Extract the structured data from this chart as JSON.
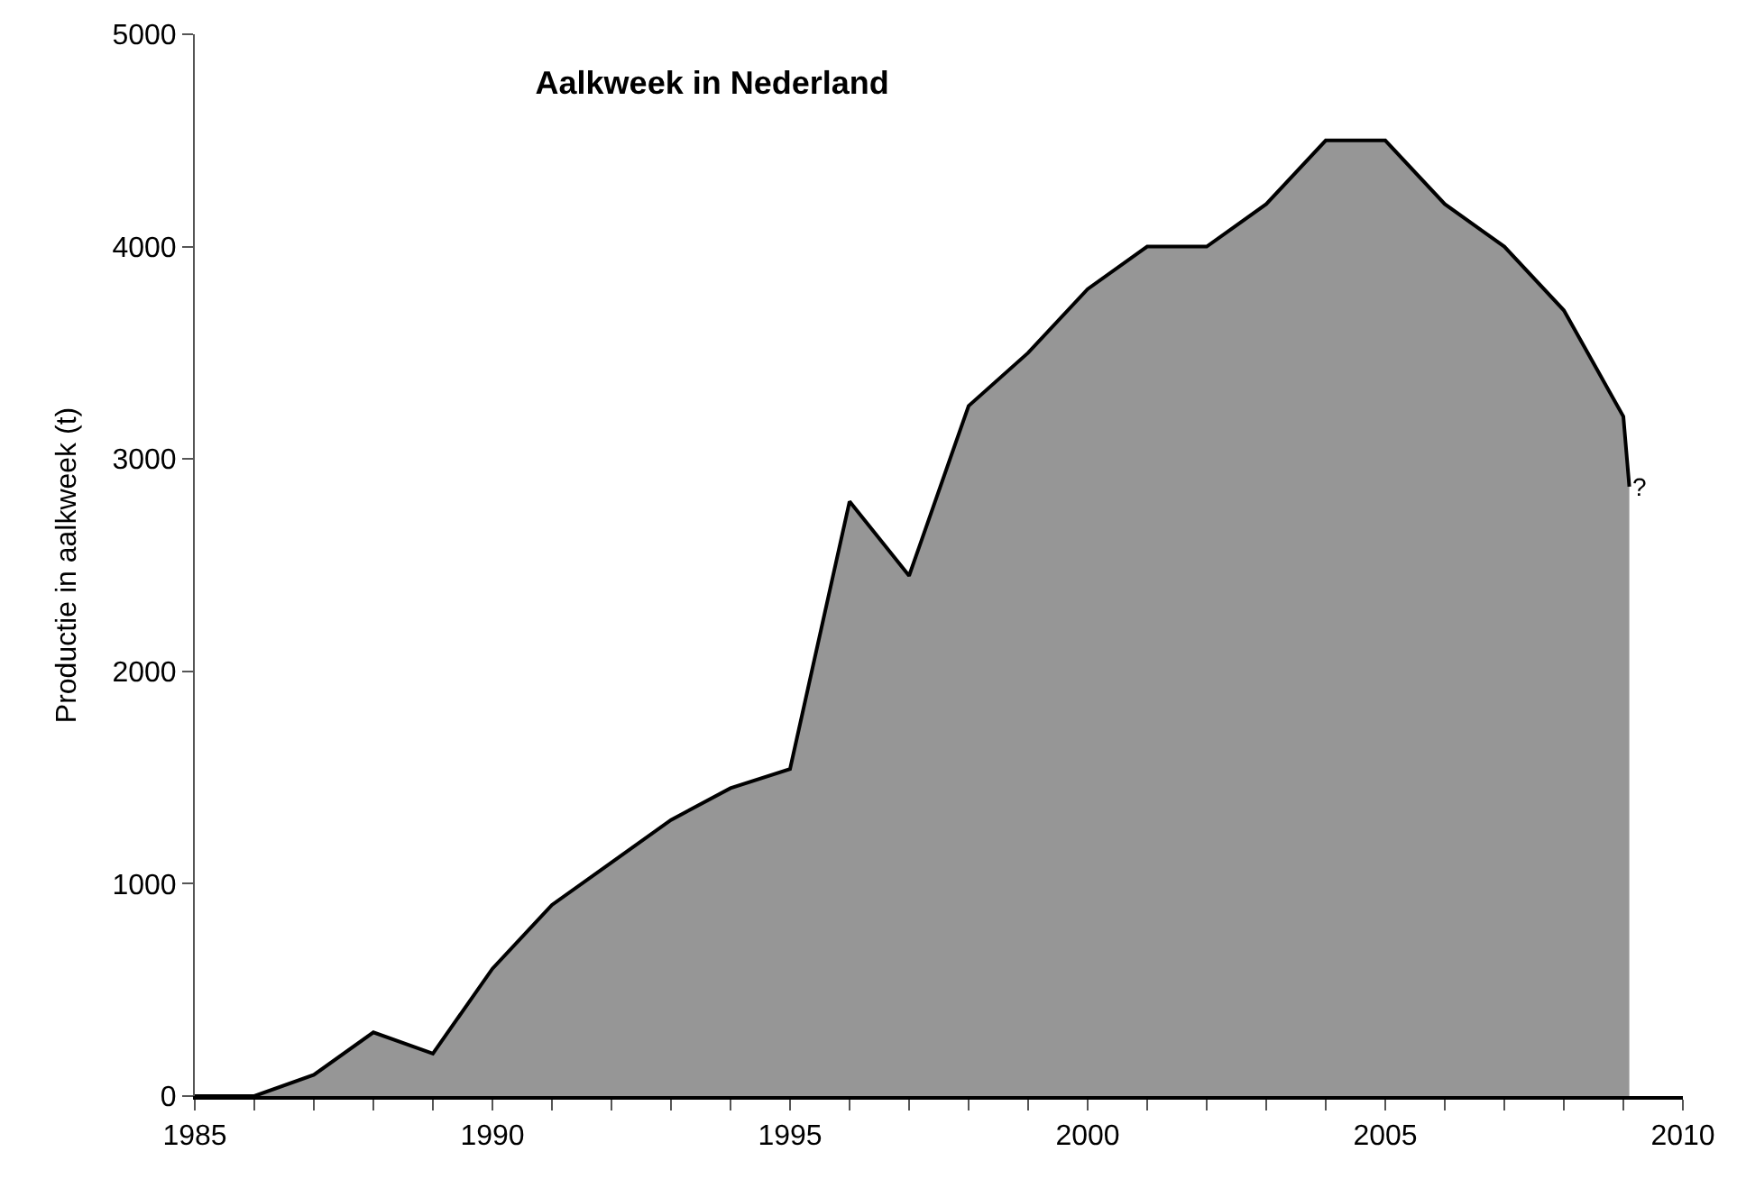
{
  "chart_data": {
    "type": "area",
    "title": "Aalkweek in Nederland",
    "ylabel": "Productie in aalkweek (t)",
    "x": [
      1985,
      1986,
      1987,
      1988,
      1989,
      1990,
      1991,
      1992,
      1993,
      1994,
      1995,
      1996,
      1997,
      1998,
      1999,
      2000,
      2001,
      2002,
      2003,
      2004,
      2005,
      2006,
      2007,
      2008,
      2009,
      2009.1
    ],
    "series": [
      {
        "color": "#969696",
        "values": [
          0,
          0,
          100,
          300,
          200,
          600,
          900,
          1100,
          1300,
          1450,
          1540,
          2800,
          2450,
          3250,
          3500,
          3800,
          4000,
          4000,
          4200,
          4500,
          4500,
          4200,
          4000,
          3700,
          3200,
          2870
        ]
      }
    ],
    "annotations": [
      {
        "text": "?",
        "x": 2009.1,
        "y": 2870
      }
    ],
    "xlim": [
      1985,
      2010
    ],
    "xticks": [
      1985,
      {
        "value": 1986,
        "label": null
      },
      {
        "value": 1987,
        "label": null
      },
      {
        "value": 1988,
        "label": null
      },
      {
        "value": 1989,
        "label": null
      },
      1990,
      {
        "value": 1991,
        "label": null
      },
      {
        "value": 1992,
        "label": null
      },
      {
        "value": 1993,
        "label": null
      },
      {
        "value": 1994,
        "label": null
      },
      1995,
      {
        "value": 1996,
        "label": null
      },
      {
        "value": 1997,
        "label": null
      },
      {
        "value": 1998,
        "label": null
      },
      {
        "value": 1999,
        "label": null
      },
      2000,
      {
        "value": 2001,
        "label": null
      },
      {
        "value": 2002,
        "label": null
      },
      {
        "value": 2003,
        "label": null
      },
      {
        "value": 2004,
        "label": null
      },
      2005,
      {
        "value": 2006,
        "label": null
      },
      {
        "value": 2007,
        "label": null
      },
      {
        "value": 2008,
        "label": null
      },
      {
        "value": 2009,
        "label": null
      },
      2010
    ],
    "ylim": [
      0,
      5000
    ],
    "yticks": [
      0,
      1000,
      2000,
      3000,
      4000,
      5000
    ]
  }
}
